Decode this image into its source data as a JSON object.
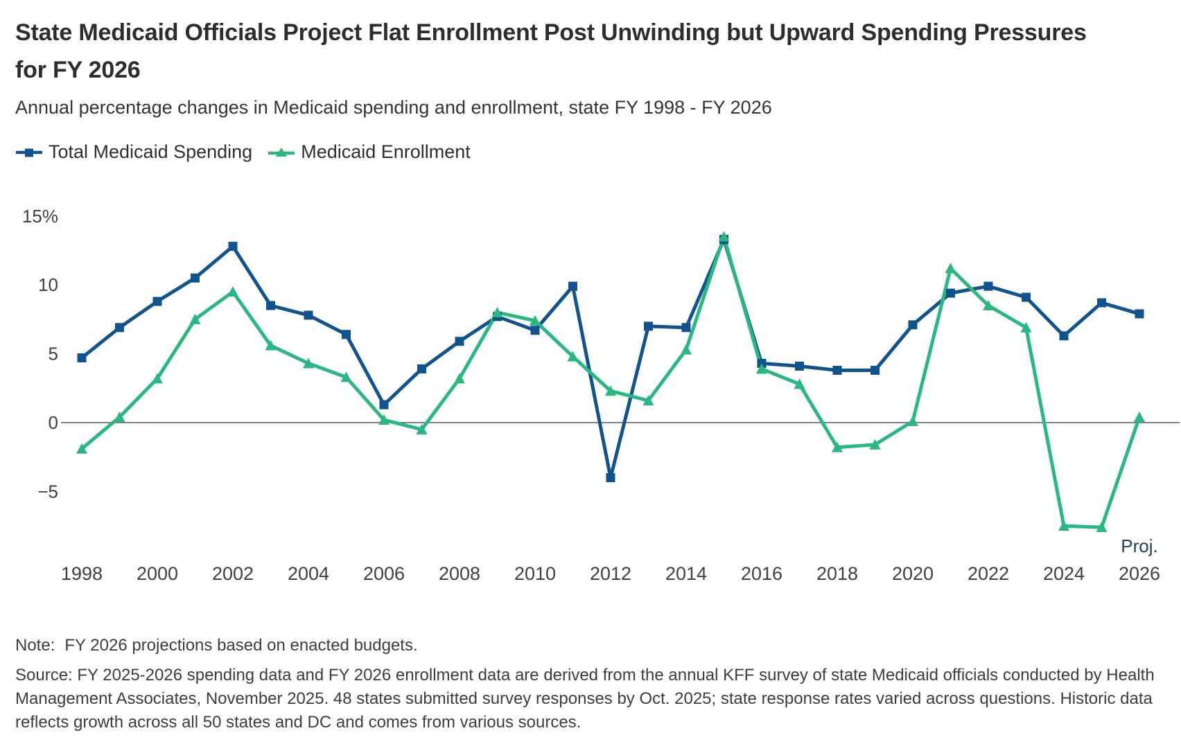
{
  "header": {
    "title": "State Medicaid Officials Project Flat Enrollment Post Unwinding but Upward Spending Pressures for FY 2026",
    "subtitle": "Annual percentage changes in Medicaid spending and enrollment, state FY 1998 - FY 2026"
  },
  "legend": {
    "items": [
      {
        "label": "Total Medicaid Spending",
        "marker": "square",
        "color": "#11538e"
      },
      {
        "label": "Medicaid Enrollment",
        "marker": "triangle",
        "color": "#29b87f"
      }
    ]
  },
  "chart_data": {
    "type": "line",
    "x": [
      1998,
      1999,
      2000,
      2001,
      2002,
      2003,
      2004,
      2005,
      2006,
      2007,
      2008,
      2009,
      2010,
      2011,
      2012,
      2013,
      2014,
      2015,
      2016,
      2017,
      2018,
      2019,
      2020,
      2021,
      2022,
      2023,
      2024,
      2025,
      2026
    ],
    "series": [
      {
        "name": "Total Medicaid Spending",
        "marker": "square",
        "color": "#11538e",
        "values": [
          4.7,
          6.9,
          8.8,
          10.5,
          12.8,
          8.5,
          7.8,
          6.4,
          1.3,
          3.9,
          5.9,
          7.7,
          6.7,
          9.9,
          -4.0,
          7.0,
          6.9,
          13.3,
          4.3,
          4.1,
          3.8,
          3.8,
          7.1,
          9.4,
          9.9,
          9.1,
          6.3,
          8.7,
          7.9
        ]
      },
      {
        "name": "Medicaid Enrollment",
        "marker": "triangle",
        "color": "#29b87f",
        "values": [
          -1.9,
          0.4,
          3.2,
          7.5,
          9.5,
          5.6,
          4.3,
          3.3,
          0.2,
          -0.5,
          3.2,
          8.0,
          7.4,
          4.8,
          2.3,
          1.6,
          5.3,
          13.5,
          3.9,
          2.8,
          -1.8,
          -1.6,
          0.1,
          11.2,
          8.5,
          6.9,
          -7.5,
          -7.6,
          0.4
        ]
      }
    ],
    "y_ticks": [
      {
        "value": 15,
        "label": "15%"
      },
      {
        "value": 10,
        "label": "10"
      },
      {
        "value": 5,
        "label": "5"
      },
      {
        "value": 0,
        "label": "0"
      },
      {
        "value": -5,
        "label": "−5"
      }
    ],
    "x_ticks": [
      1998,
      2000,
      2002,
      2004,
      2006,
      2008,
      2010,
      2012,
      2014,
      2016,
      2018,
      2020,
      2022,
      2024,
      2026
    ],
    "x_last_tick_note": "Proj.",
    "xlabel": "",
    "ylabel": "",
    "ylim": [
      -9,
      15.5
    ],
    "grid": "zero-line-only",
    "legend_position": "top-left"
  },
  "footer": {
    "note_label": "Note:",
    "note_text": "FY 2026 projections based on enacted budgets.",
    "source_text": "Source: FY 2025-2026 spending data and FY 2026 enrollment data are derived from the annual KFF survey of state Medicaid officials conducted by Health Management Associates, November 2025. 48 states submitted survey responses by Oct. 2025; state response rates varied across questions. Historic data reflects growth across all 50 states and DC and comes from various sources."
  },
  "colors": {
    "spending": "#11538e",
    "enrollment": "#29b87f",
    "axis_text": "#404040",
    "zero_line": "#58595b",
    "proj_label": "#1e4164",
    "title_text": "#2d2d2d"
  }
}
